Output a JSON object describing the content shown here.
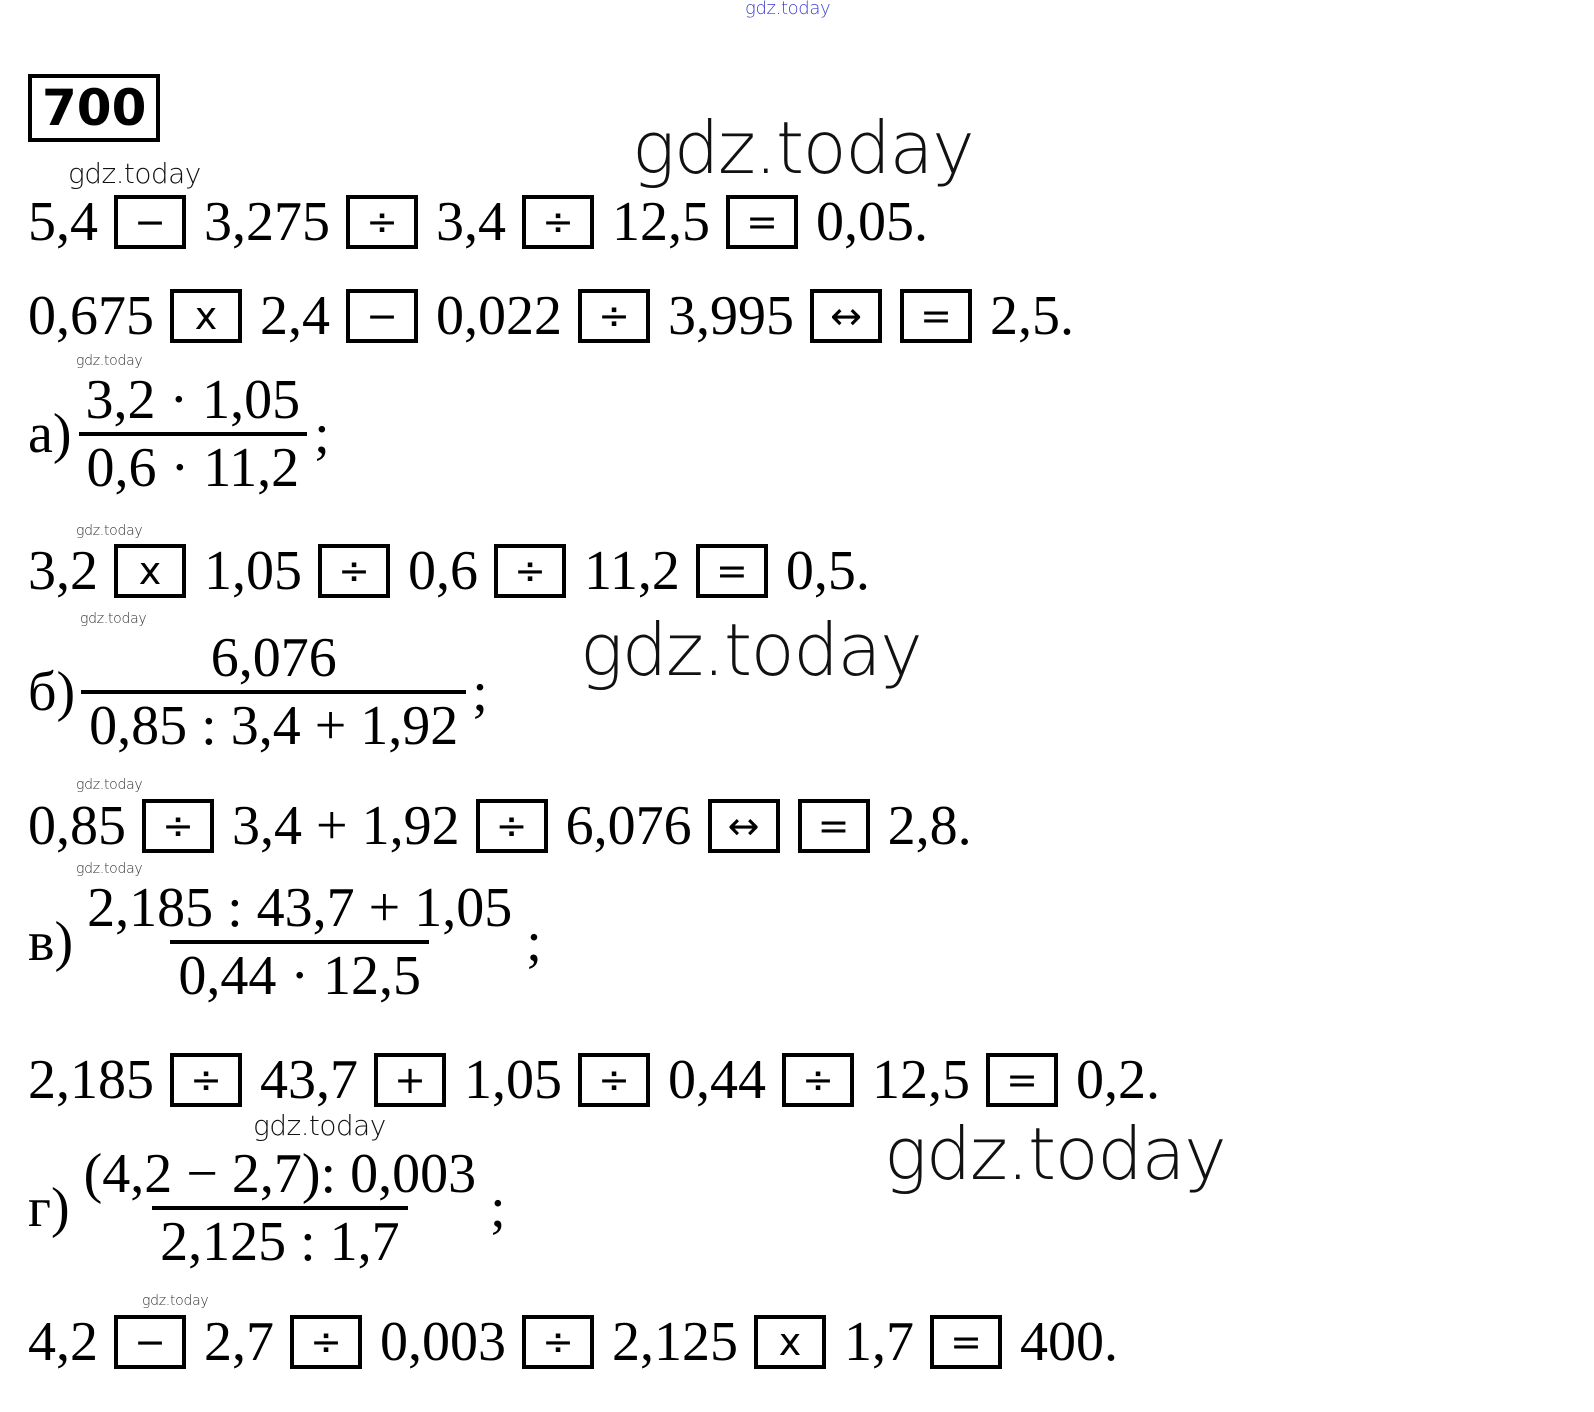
{
  "exercise_number": "700",
  "watermark": "gdz.today",
  "lines": [
    [
      {
        "v": "5,4"
      },
      {
        "k": "−"
      },
      {
        "v": "3,275"
      },
      {
        "k": "÷"
      },
      {
        "v": "3,4"
      },
      {
        "k": "÷"
      },
      {
        "v": "12,5"
      },
      {
        "k": "="
      },
      {
        "v": "0,05."
      }
    ],
    [
      {
        "v": "0,675"
      },
      {
        "k": "x"
      },
      {
        "v": "2,4"
      },
      {
        "k": "−"
      },
      {
        "v": "0,022"
      },
      {
        "k": "÷"
      },
      {
        "v": "3,995"
      },
      {
        "k": "↔"
      },
      {
        "k": "="
      },
      {
        "v": "2,5."
      }
    ],
    [
      {
        "v": "3,2"
      },
      {
        "k": "x"
      },
      {
        "v": "1,05"
      },
      {
        "k": "÷"
      },
      {
        "v": "0,6"
      },
      {
        "k": "÷"
      },
      {
        "v": "11,2"
      },
      {
        "k": "="
      },
      {
        "v": "0,5."
      }
    ],
    [
      {
        "v": "0,85"
      },
      {
        "k": "÷"
      },
      {
        "v": "3,4 + 1,92"
      },
      {
        "k": "÷"
      },
      {
        "v": "6,076"
      },
      {
        "k": "↔"
      },
      {
        "k": "="
      },
      {
        "v": "2,8."
      }
    ],
    [
      {
        "v": "2,185"
      },
      {
        "k": "÷"
      },
      {
        "v": "43,7"
      },
      {
        "k": "+"
      },
      {
        "v": "1,05"
      },
      {
        "k": "÷"
      },
      {
        "v": "0,44"
      },
      {
        "k": "÷"
      },
      {
        "v": "12,5"
      },
      {
        "k": "="
      },
      {
        "v": "0,2."
      }
    ],
    [
      {
        "v": "4,2"
      },
      {
        "k": "−"
      },
      {
        "v": "2,7"
      },
      {
        "k": "÷"
      },
      {
        "v": "0,003"
      },
      {
        "k": "÷"
      },
      {
        "v": "2,125"
      },
      {
        "k": "x"
      },
      {
        "v": "1,7"
      },
      {
        "k": "="
      },
      {
        "v": "400."
      }
    ]
  ],
  "fractions": [
    {
      "label": "а)",
      "numerator": "3,2 · 1,05",
      "denominator": "0,6 · 11,2",
      "end": ";"
    },
    {
      "label": "б)",
      "numerator": "6,076",
      "denominator": "0,85 : 3,4 + 1,92",
      "end": ";"
    },
    {
      "label": "в)",
      "numerator": "2,185 : 43,7 + 1,05",
      "denominator": "0,44 · 12,5",
      "end": ";"
    },
    {
      "label": "г)",
      "numerator": "(4,2 − 2,7): 0,003",
      "denominator": "2,125 : 1,7",
      "end": ";"
    }
  ]
}
